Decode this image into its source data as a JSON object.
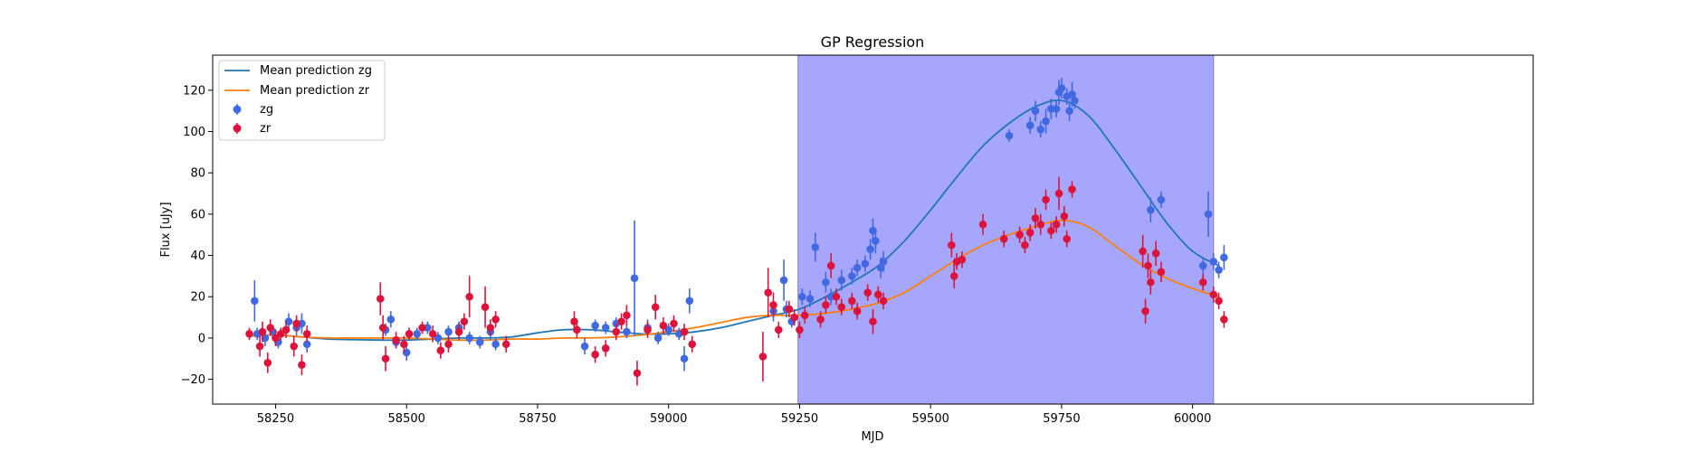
{
  "chart_data": {
    "type": "scatter",
    "title": "GP Regression",
    "xlabel": "MJD",
    "ylabel": "Flux [uJy]",
    "xlim": [
      58130,
      60650
    ],
    "ylim": [
      -32,
      137
    ],
    "x_ticks": [
      58250,
      58500,
      58750,
      59000,
      59250,
      59500,
      59750,
      60000
    ],
    "x_tick_labels": [
      "58250",
      "58500",
      "58750",
      "59000",
      "59250",
      "59500",
      "59750",
      "60000"
    ],
    "y_ticks": [
      -20,
      0,
      20,
      40,
      60,
      80,
      100,
      120
    ],
    "y_tick_labels": [
      "−20",
      "0",
      "20",
      "40",
      "60",
      "80",
      "100",
      "120"
    ],
    "grid": false,
    "legend_position": "top-left",
    "shaded_region": {
      "x_start": 59247,
      "x_end": 60040,
      "color": "#a6a6fd"
    },
    "lines": [
      {
        "name": "Mean prediction zg",
        "color": "#1f77b4",
        "x": [
          58200,
          58250,
          58300,
          58350,
          58400,
          58450,
          58500,
          58550,
          58600,
          58650,
          58700,
          58750,
          58800,
          58850,
          58900,
          58950,
          59000,
          59050,
          59100,
          59150,
          59200,
          59250,
          59300,
          59350,
          59400,
          59450,
          59500,
          59550,
          59600,
          59650,
          59700,
          59750,
          59800,
          59850,
          59900,
          59950,
          60000,
          60050
        ],
        "y": [
          1,
          1.5,
          0.5,
          -0.5,
          -0.8,
          -1,
          -1,
          -0.5,
          0,
          0,
          0.5,
          2.5,
          4,
          4,
          3,
          2,
          2,
          3,
          5,
          8,
          11,
          14,
          20,
          27,
          35,
          47,
          62,
          78,
          93,
          104,
          112,
          115,
          108,
          92,
          74,
          56,
          42,
          35
        ]
      },
      {
        "name": "Mean prediction zr",
        "color": "#ff7f0e",
        "x": [
          58200,
          58250,
          58300,
          58350,
          58400,
          58450,
          58500,
          58550,
          58600,
          58650,
          58700,
          58750,
          58800,
          58850,
          58900,
          58950,
          59000,
          59050,
          59100,
          59150,
          59200,
          59250,
          59300,
          59350,
          59400,
          59450,
          59500,
          59550,
          59600,
          59650,
          59700,
          59750,
          59800,
          59850,
          59900,
          59950,
          60000,
          60050
        ],
        "y": [
          1,
          1.5,
          0.5,
          0,
          0,
          0,
          0,
          -0.5,
          -1,
          -1,
          -0.5,
          -0.5,
          0,
          0,
          0.5,
          1.5,
          3,
          5,
          7.5,
          10,
          11,
          11,
          12,
          14,
          17,
          22,
          30,
          38,
          45,
          50,
          54,
          57,
          54,
          45,
          36,
          29,
          24,
          20
        ]
      }
    ],
    "series": [
      {
        "name": "zg",
        "color": "#4169e1",
        "points": [
          [
            58210,
            18,
            10
          ],
          [
            58215,
            2,
            3
          ],
          [
            58230,
            0,
            4
          ],
          [
            58245,
            3,
            3
          ],
          [
            58255,
            -2,
            3
          ],
          [
            58275,
            8,
            4
          ],
          [
            58290,
            5,
            4
          ],
          [
            58300,
            7,
            5
          ],
          [
            58310,
            -3,
            4
          ],
          [
            58460,
            4,
            3
          ],
          [
            58470,
            9,
            4
          ],
          [
            58480,
            -2,
            3
          ],
          [
            58500,
            -7,
            4
          ],
          [
            58520,
            2,
            3
          ],
          [
            58540,
            5,
            3
          ],
          [
            58560,
            0,
            3
          ],
          [
            58580,
            3,
            3
          ],
          [
            58600,
            5,
            3
          ],
          [
            58620,
            0,
            3
          ],
          [
            58640,
            -2,
            3
          ],
          [
            58660,
            3,
            4
          ],
          [
            58670,
            -3,
            3
          ],
          [
            58840,
            -4,
            4
          ],
          [
            58860,
            6,
            3
          ],
          [
            58880,
            5,
            3
          ],
          [
            58900,
            7,
            3
          ],
          [
            58920,
            3,
            3
          ],
          [
            58935,
            29,
            28
          ],
          [
            58960,
            5,
            4
          ],
          [
            58980,
            0,
            3
          ],
          [
            59000,
            4,
            3
          ],
          [
            59020,
            2,
            3
          ],
          [
            59030,
            -10,
            6
          ],
          [
            59040,
            18,
            6
          ],
          [
            59200,
            13,
            5
          ],
          [
            59220,
            28,
            10
          ],
          [
            59225,
            14,
            4
          ],
          [
            59235,
            8,
            3
          ],
          [
            59255,
            20,
            4
          ],
          [
            59270,
            19,
            4
          ],
          [
            59280,
            44,
            7
          ],
          [
            59300,
            27,
            5
          ],
          [
            59310,
            20,
            4
          ],
          [
            59330,
            28,
            5
          ],
          [
            59350,
            30,
            4
          ],
          [
            59360,
            34,
            4
          ],
          [
            59375,
            36,
            4
          ],
          [
            59385,
            43,
            5
          ],
          [
            59390,
            52,
            6
          ],
          [
            59395,
            47,
            6
          ],
          [
            59405,
            34,
            5
          ],
          [
            59410,
            37,
            5
          ],
          [
            59650,
            98,
            3
          ],
          [
            59690,
            103,
            4
          ],
          [
            59700,
            110,
            5
          ],
          [
            59710,
            101,
            4
          ],
          [
            59720,
            105,
            6
          ],
          [
            59730,
            111,
            5
          ],
          [
            59740,
            111,
            4
          ],
          [
            59745,
            119,
            6
          ],
          [
            59750,
            121,
            5
          ],
          [
            59760,
            117,
            4
          ],
          [
            59765,
            110,
            5
          ],
          [
            59770,
            118,
            6
          ],
          [
            59775,
            115,
            4
          ],
          [
            59920,
            62,
            6
          ],
          [
            59940,
            67,
            4
          ],
          [
            60020,
            35,
            4
          ],
          [
            60030,
            60,
            11
          ],
          [
            60040,
            37,
            4
          ],
          [
            60050,
            33,
            4
          ],
          [
            60060,
            39,
            6
          ]
        ]
      },
      {
        "name": "zr",
        "color": "#dc143c",
        "points": [
          [
            58200,
            2,
            3
          ],
          [
            58220,
            -4,
            5
          ],
          [
            58225,
            3,
            5
          ],
          [
            58235,
            -12,
            5
          ],
          [
            58240,
            5,
            4
          ],
          [
            58250,
            0,
            4
          ],
          [
            58260,
            2,
            3
          ],
          [
            58270,
            4,
            4
          ],
          [
            58285,
            -4,
            5
          ],
          [
            58290,
            7,
            4
          ],
          [
            58300,
            -13,
            5
          ],
          [
            58310,
            2,
            4
          ],
          [
            58450,
            19,
            8
          ],
          [
            58455,
            5,
            6
          ],
          [
            58460,
            -10,
            6
          ],
          [
            58480,
            -1,
            4
          ],
          [
            58495,
            -3,
            4
          ],
          [
            58505,
            2,
            3
          ],
          [
            58530,
            5,
            3
          ],
          [
            58550,
            2,
            4
          ],
          [
            58565,
            -6,
            4
          ],
          [
            58580,
            -3,
            4
          ],
          [
            58600,
            3,
            4
          ],
          [
            58610,
            8,
            4
          ],
          [
            58620,
            20,
            10
          ],
          [
            58650,
            15,
            10
          ],
          [
            58660,
            5,
            4
          ],
          [
            58670,
            9,
            4
          ],
          [
            58690,
            -3,
            4
          ],
          [
            58820,
            8,
            5
          ],
          [
            58825,
            4,
            4
          ],
          [
            58860,
            -8,
            4
          ],
          [
            58880,
            -5,
            4
          ],
          [
            58900,
            3,
            4
          ],
          [
            58910,
            8,
            4
          ],
          [
            58920,
            11,
            5
          ],
          [
            58940,
            -17,
            6
          ],
          [
            58960,
            4,
            4
          ],
          [
            58975,
            15,
            6
          ],
          [
            58990,
            6,
            4
          ],
          [
            59010,
            7,
            4
          ],
          [
            59030,
            3,
            4
          ],
          [
            59045,
            -3,
            4
          ],
          [
            59180,
            -9,
            12
          ],
          [
            59190,
            22,
            12
          ],
          [
            59200,
            16,
            6
          ],
          [
            59210,
            4,
            4
          ],
          [
            59230,
            14,
            4
          ],
          [
            59240,
            10,
            4
          ],
          [
            59250,
            4,
            4
          ],
          [
            59260,
            11,
            4
          ],
          [
            59290,
            9,
            4
          ],
          [
            59300,
            16,
            4
          ],
          [
            59310,
            35,
            6
          ],
          [
            59320,
            20,
            4
          ],
          [
            59330,
            15,
            4
          ],
          [
            59350,
            18,
            4
          ],
          [
            59360,
            13,
            4
          ],
          [
            59380,
            22,
            4
          ],
          [
            59390,
            8,
            6
          ],
          [
            59400,
            21,
            4
          ],
          [
            59410,
            18,
            4
          ],
          [
            59540,
            45,
            6
          ],
          [
            59545,
            30,
            6
          ],
          [
            59550,
            37,
            4
          ],
          [
            59560,
            38,
            4
          ],
          [
            59600,
            55,
            5
          ],
          [
            59640,
            48,
            4
          ],
          [
            59670,
            50,
            4
          ],
          [
            59680,
            45,
            4
          ],
          [
            59690,
            51,
            4
          ],
          [
            59700,
            58,
            5
          ],
          [
            59710,
            55,
            5
          ],
          [
            59720,
            67,
            5
          ],
          [
            59730,
            52,
            4
          ],
          [
            59740,
            55,
            4
          ],
          [
            59745,
            70,
            8
          ],
          [
            59755,
            59,
            5
          ],
          [
            59760,
            48,
            4
          ],
          [
            59770,
            72,
            4
          ],
          [
            59905,
            42,
            8
          ],
          [
            59910,
            13,
            6
          ],
          [
            59915,
            35,
            6
          ],
          [
            59920,
            27,
            6
          ],
          [
            59930,
            41,
            6
          ],
          [
            59940,
            32,
            5
          ],
          [
            60020,
            27,
            4
          ],
          [
            60040,
            21,
            4
          ],
          [
            60050,
            18,
            4
          ],
          [
            60060,
            9,
            4
          ]
        ]
      }
    ]
  }
}
